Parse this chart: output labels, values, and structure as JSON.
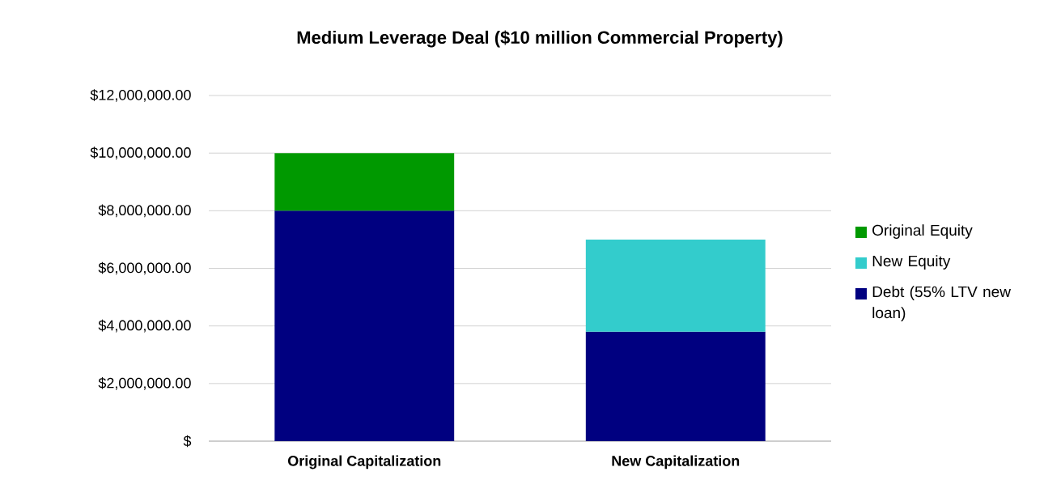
{
  "chart_data": {
    "type": "bar",
    "title": "Medium Leverage Deal ($10 million Commercial Property)",
    "categories": [
      "Original Capitalization",
      "New Capitalization"
    ],
    "stacked": true,
    "series": [
      {
        "name": "Debt (55% LTV new loan)",
        "color": "#000080",
        "values": [
          8000000,
          3800000
        ]
      },
      {
        "name": "New Equity",
        "color": "#33cccc",
        "values": [
          null,
          3200000
        ]
      },
      {
        "name": "Original Equity",
        "color": "#009900",
        "values": [
          2000000,
          null
        ]
      }
    ],
    "ylim": [
      0,
      12000000
    ],
    "yticks": [
      {
        "value": 0,
        "label": "$"
      },
      {
        "value": 2000000,
        "label": "$2,000,000.00"
      },
      {
        "value": 4000000,
        "label": "$4,000,000.00"
      },
      {
        "value": 6000000,
        "label": "$6,000,000.00"
      },
      {
        "value": 8000000,
        "label": "$8,000,000.00"
      },
      {
        "value": 10000000,
        "label": "$10,000,000.00"
      },
      {
        "value": 12000000,
        "label": "$12,000,000.00"
      }
    ],
    "grid": "y",
    "legend": "right"
  }
}
